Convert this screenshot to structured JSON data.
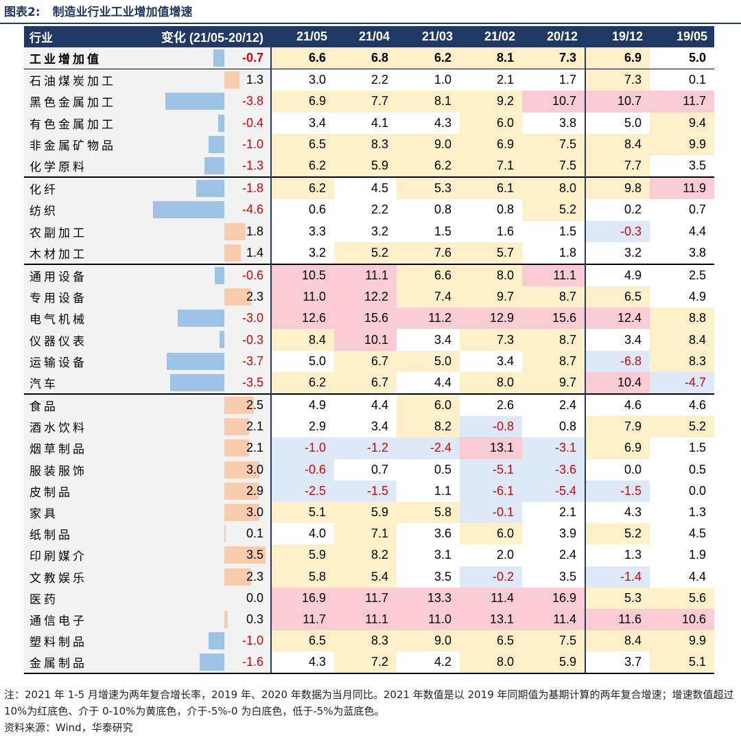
{
  "figure": {
    "label": "图表2:",
    "title": "制造业行业工业增加值增速"
  },
  "table": {
    "headers": {
      "industry": "行业",
      "change": "变化 (21/05-20/12)",
      "columns": [
        "21/05",
        "21/04",
        "21/03",
        "21/02",
        "20/12",
        "19/12",
        "19/05"
      ]
    },
    "scale_max_abs_change": 4.6,
    "rows": [
      {
        "name": "工业增加值",
        "change": "-0.7",
        "change_value": -0.7,
        "values": [
          "6.6",
          "6.8",
          "6.2",
          "8.1",
          "7.3",
          "6.9",
          "5.0"
        ],
        "colors": [
          "y",
          "y",
          "y",
          "y",
          "y",
          "y",
          "w"
        ],
        "total": true
      },
      {
        "name": "石油煤炭加工",
        "change": "1.3",
        "change_value": 1.3,
        "values": [
          "3.0",
          "2.2",
          "1.0",
          "2.1",
          "1.7",
          "7.3",
          "0.1"
        ],
        "colors": [
          "w",
          "w",
          "w",
          "w",
          "w",
          "y",
          "w"
        ]
      },
      {
        "name": "黑色金属加工",
        "change": "-3.8",
        "change_value": -3.8,
        "values": [
          "6.9",
          "7.7",
          "8.1",
          "9.2",
          "10.7",
          "10.7",
          "11.7"
        ],
        "colors": [
          "y",
          "y",
          "y",
          "y",
          "r",
          "r",
          "r"
        ]
      },
      {
        "name": "有色金属加工",
        "change": "-0.4",
        "change_value": -0.4,
        "values": [
          "3.4",
          "4.1",
          "4.3",
          "6.0",
          "3.8",
          "5.0",
          "9.4"
        ],
        "colors": [
          "w",
          "w",
          "w",
          "y",
          "w",
          "w",
          "y"
        ]
      },
      {
        "name": "非金属矿物品",
        "change": "-1.0",
        "change_value": -1.0,
        "values": [
          "6.5",
          "8.3",
          "9.0",
          "6.9",
          "7.5",
          "8.4",
          "9.9"
        ],
        "colors": [
          "y",
          "y",
          "y",
          "y",
          "y",
          "y",
          "y"
        ]
      },
      {
        "name": "化学原料",
        "change": "-1.3",
        "change_value": -1.3,
        "values": [
          "6.2",
          "5.9",
          "6.2",
          "7.1",
          "7.5",
          "7.7",
          "3.5"
        ],
        "colors": [
          "y",
          "y",
          "y",
          "y",
          "y",
          "y",
          "w"
        ]
      },
      {
        "name": "化纤",
        "change": "-1.8",
        "change_value": -1.8,
        "values": [
          "6.2",
          "4.5",
          "5.3",
          "6.1",
          "8.0",
          "9.8",
          "11.9"
        ],
        "colors": [
          "y",
          "w",
          "y",
          "y",
          "y",
          "y",
          "r"
        ],
        "group_start": true
      },
      {
        "name": "纺织",
        "change": "-4.6",
        "change_value": -4.6,
        "values": [
          "0.6",
          "2.2",
          "0.8",
          "0.8",
          "5.2",
          "0.2",
          "0.7"
        ],
        "colors": [
          "w",
          "w",
          "w",
          "w",
          "y",
          "w",
          "w"
        ]
      },
      {
        "name": "农副加工",
        "change": "1.8",
        "change_value": 1.8,
        "values": [
          "3.3",
          "3.2",
          "1.5",
          "1.6",
          "1.5",
          "-0.3",
          "4.4"
        ],
        "colors": [
          "w",
          "w",
          "w",
          "w",
          "w",
          "b",
          "w"
        ]
      },
      {
        "name": "木材加工",
        "change": "1.4",
        "change_value": 1.4,
        "values": [
          "3.2",
          "5.2",
          "7.6",
          "5.7",
          "1.8",
          "3.2",
          "3.8"
        ],
        "colors": [
          "w",
          "y",
          "y",
          "y",
          "w",
          "w",
          "w"
        ]
      },
      {
        "name": "通用设备",
        "change": "-0.6",
        "change_value": -0.6,
        "values": [
          "10.5",
          "11.1",
          "6.6",
          "8.0",
          "11.1",
          "4.9",
          "2.5"
        ],
        "colors": [
          "r",
          "r",
          "y",
          "y",
          "r",
          "w",
          "w"
        ],
        "group_start": true
      },
      {
        "name": "专用设备",
        "change": "2.3",
        "change_value": 2.3,
        "values": [
          "11.0",
          "12.2",
          "7.4",
          "9.7",
          "8.7",
          "6.5",
          "4.9"
        ],
        "colors": [
          "r",
          "r",
          "y",
          "y",
          "y",
          "y",
          "w"
        ]
      },
      {
        "name": "电气机械",
        "change": "-3.0",
        "change_value": -3.0,
        "values": [
          "12.6",
          "15.6",
          "11.2",
          "12.9",
          "15.6",
          "12.4",
          "8.8"
        ],
        "colors": [
          "r",
          "r",
          "r",
          "r",
          "r",
          "r",
          "y"
        ]
      },
      {
        "name": "仪器仪表",
        "change": "-0.3",
        "change_value": -0.3,
        "values": [
          "8.4",
          "10.1",
          "3.4",
          "7.3",
          "8.7",
          "3.4",
          "8.4"
        ],
        "colors": [
          "y",
          "r",
          "w",
          "y",
          "y",
          "w",
          "y"
        ]
      },
      {
        "name": "运输设备",
        "change": "-3.7",
        "change_value": -3.7,
        "values": [
          "5.0",
          "6.7",
          "5.0",
          "3.4",
          "8.7",
          "-6.8",
          "8.3"
        ],
        "colors": [
          "w",
          "y",
          "y",
          "w",
          "y",
          "b",
          "y"
        ]
      },
      {
        "name": "汽车",
        "change": "-3.5",
        "change_value": -3.5,
        "values": [
          "6.2",
          "6.7",
          "4.4",
          "8.0",
          "9.7",
          "10.4",
          "-4.7"
        ],
        "colors": [
          "y",
          "y",
          "w",
          "y",
          "y",
          "r",
          "b"
        ]
      },
      {
        "name": "食品",
        "change": "2.5",
        "change_value": 2.5,
        "values": [
          "4.9",
          "4.4",
          "6.0",
          "2.6",
          "2.4",
          "4.6",
          "4.6"
        ],
        "colors": [
          "w",
          "w",
          "y",
          "w",
          "w",
          "w",
          "w"
        ],
        "group_start": true
      },
      {
        "name": "酒水饮料",
        "change": "2.1",
        "change_value": 2.1,
        "values": [
          "2.9",
          "3.4",
          "8.2",
          "-0.8",
          "0.8",
          "7.9",
          "5.2"
        ],
        "colors": [
          "w",
          "w",
          "y",
          "b",
          "w",
          "y",
          "y"
        ]
      },
      {
        "name": "烟草制品",
        "change": "2.1",
        "change_value": 2.1,
        "values": [
          "-1.0",
          "-1.2",
          "-2.4",
          "13.1",
          "-3.1",
          "6.9",
          "1.5"
        ],
        "colors": [
          "b",
          "b",
          "b",
          "r",
          "b",
          "y",
          "w"
        ]
      },
      {
        "name": "服装服饰",
        "change": "3.0",
        "change_value": 3.0,
        "values": [
          "-0.6",
          "0.7",
          "0.5",
          "-5.1",
          "-3.6",
          "0.0",
          "0.5"
        ],
        "colors": [
          "b",
          "w",
          "w",
          "b",
          "b",
          "w",
          "w"
        ]
      },
      {
        "name": "皮制品",
        "change": "2.9",
        "change_value": 2.9,
        "values": [
          "-2.5",
          "-1.5",
          "1.1",
          "-6.1",
          "-5.4",
          "-1.5",
          "0.0"
        ],
        "colors": [
          "b",
          "b",
          "w",
          "b",
          "b",
          "b",
          "w"
        ]
      },
      {
        "name": "家具",
        "change": "3.0",
        "change_value": 3.0,
        "values": [
          "5.1",
          "5.9",
          "5.8",
          "-0.1",
          "2.1",
          "4.3",
          "1.3"
        ],
        "colors": [
          "y",
          "y",
          "y",
          "b",
          "w",
          "w",
          "w"
        ]
      },
      {
        "name": "纸制品",
        "change": "0.1",
        "change_value": 0.1,
        "values": [
          "4.0",
          "7.1",
          "3.6",
          "6.0",
          "3.9",
          "5.2",
          "4.5"
        ],
        "colors": [
          "w",
          "y",
          "w",
          "y",
          "w",
          "y",
          "w"
        ]
      },
      {
        "name": "印刷媒介",
        "change": "3.5",
        "change_value": 3.5,
        "values": [
          "5.9",
          "8.2",
          "3.1",
          "2.0",
          "2.4",
          "1.3",
          "1.9"
        ],
        "colors": [
          "y",
          "y",
          "w",
          "w",
          "w",
          "w",
          "w"
        ]
      },
      {
        "name": "文教娱乐",
        "change": "2.3",
        "change_value": 2.3,
        "values": [
          "5.8",
          "5.4",
          "3.5",
          "-0.2",
          "3.5",
          "-1.4",
          "4.4"
        ],
        "colors": [
          "y",
          "y",
          "w",
          "b",
          "w",
          "b",
          "w"
        ]
      },
      {
        "name": "医药",
        "change": "0.0",
        "change_value": 0.0,
        "values": [
          "16.9",
          "11.7",
          "13.3",
          "11.4",
          "16.9",
          "5.3",
          "5.6"
        ],
        "colors": [
          "r",
          "r",
          "r",
          "r",
          "r",
          "y",
          "y"
        ]
      },
      {
        "name": "通信电子",
        "change": "0.3",
        "change_value": 0.3,
        "values": [
          "11.7",
          "11.1",
          "11.0",
          "13.1",
          "11.4",
          "11.6",
          "10.6"
        ],
        "colors": [
          "r",
          "r",
          "r",
          "r",
          "r",
          "r",
          "r"
        ]
      },
      {
        "name": "塑料制品",
        "change": "-1.0",
        "change_value": -1.0,
        "values": [
          "6.5",
          "8.3",
          "9.0",
          "6.5",
          "7.5",
          "8.4",
          "9.9"
        ],
        "colors": [
          "y",
          "y",
          "y",
          "y",
          "y",
          "y",
          "y"
        ]
      },
      {
        "name": "金属制品",
        "change": "-1.6",
        "change_value": -1.6,
        "values": [
          "4.3",
          "7.2",
          "4.2",
          "8.0",
          "5.9",
          "3.7",
          "5.1"
        ],
        "colors": [
          "w",
          "y",
          "w",
          "y",
          "y",
          "w",
          "y"
        ]
      }
    ]
  },
  "notes": {
    "line1": "注：2021 年 1-5 月增速为两年复合增长率，2019 年、2020 年数据为当月同比。2021 年数值是以 2019 年同期值为基期计算的两年复合增速；增速数值超过 10%为红底色、介于 0-10%为黄底色，介于-5%-0 为白底色，低于-5%为蓝底色。",
    "line2": "资料来源：Wind，华泰研究"
  }
}
